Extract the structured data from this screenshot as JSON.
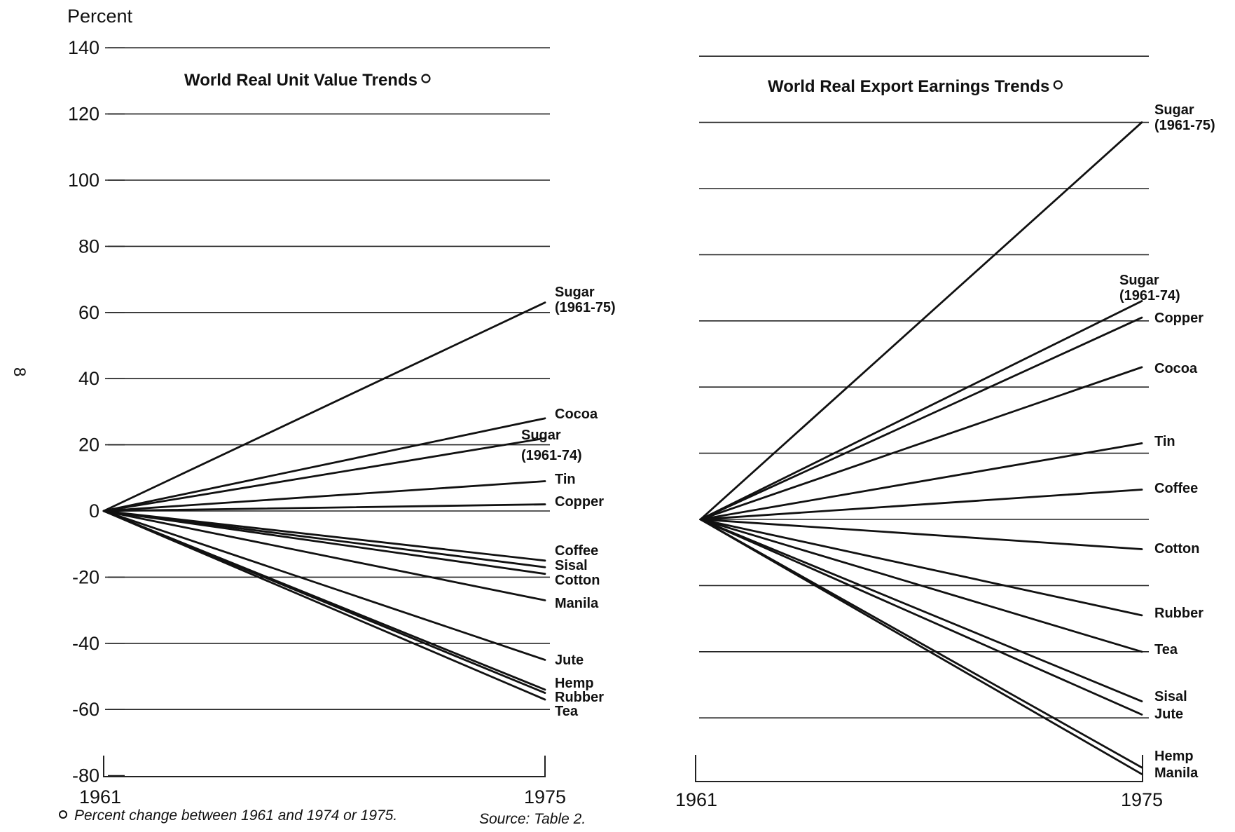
{
  "y_unit_label": "Percent",
  "page_marker": "8",
  "footnote": {
    "marker": "o",
    "text": "Percent change between 1961 and 1974 or 1975.",
    "source": "Source:  Table 2."
  },
  "chart_data": [
    {
      "type": "line",
      "title": "World Real Unit Value Trends",
      "title_marker": "o",
      "ylabel": "Percent",
      "ylim": [
        -80,
        140
      ],
      "yticks": [
        140,
        120,
        100,
        80,
        60,
        40,
        20,
        0,
        -20,
        -40,
        -60,
        -80
      ],
      "grid": true,
      "x": [
        "1961",
        "1975"
      ],
      "series": [
        {
          "name": "Sugar (1961-75)",
          "label_lines": [
            "Sugar",
            "(1961-75)"
          ],
          "values": [
            0,
            63
          ]
        },
        {
          "name": "Cocoa",
          "label_lines": [
            "Cocoa"
          ],
          "values": [
            0,
            28
          ]
        },
        {
          "name": "Sugar (1961-74)",
          "label_lines": [
            "Sugar",
            "(1961-74)"
          ],
          "values": [
            0,
            22
          ]
        },
        {
          "name": "Tin",
          "label_lines": [
            "Tin"
          ],
          "values": [
            0,
            9
          ]
        },
        {
          "name": "Copper",
          "label_lines": [
            "Copper"
          ],
          "values": [
            0,
            2
          ]
        },
        {
          "name": "Coffee",
          "label_lines": [
            "Coffee"
          ],
          "values": [
            0,
            -15
          ]
        },
        {
          "name": "Sisal",
          "label_lines": [
            "Sisal"
          ],
          "values": [
            0,
            -17
          ]
        },
        {
          "name": "Cotton",
          "label_lines": [
            "Cotton"
          ],
          "values": [
            0,
            -19
          ]
        },
        {
          "name": "Manila",
          "label_lines": [
            "Manila"
          ],
          "values": [
            0,
            -27
          ]
        },
        {
          "name": "Jute",
          "label_lines": [
            "Jute"
          ],
          "values": [
            0,
            -45
          ]
        },
        {
          "name": "Hemp",
          "label_lines": [
            "Hemp"
          ],
          "values": [
            0,
            -54
          ]
        },
        {
          "name": "Rubber",
          "label_lines": [
            "Rubber"
          ],
          "values": [
            0,
            -55
          ]
        },
        {
          "name": "Tea",
          "label_lines": [
            "Tea"
          ],
          "values": [
            0,
            -57
          ]
        }
      ]
    },
    {
      "type": "line",
      "title": "World Real Export Earnings Trends",
      "title_marker": "o",
      "ylim": [
        -80,
        140
      ],
      "grid": true,
      "x": [
        "1961",
        "1975"
      ],
      "series": [
        {
          "name": "Sugar (1961-75)",
          "label_lines": [
            "Sugar",
            "(1961-75)"
          ],
          "values": [
            0,
            120
          ]
        },
        {
          "name": "Sugar (1961-74)",
          "label_lines": [
            "Sugar",
            "(1961-74)"
          ],
          "values": [
            0,
            66
          ]
        },
        {
          "name": "Copper",
          "label_lines": [
            "Copper"
          ],
          "values": [
            0,
            61
          ]
        },
        {
          "name": "Cocoa",
          "label_lines": [
            "Cocoa"
          ],
          "values": [
            0,
            46
          ]
        },
        {
          "name": "Tin",
          "label_lines": [
            "Tin"
          ],
          "values": [
            0,
            23
          ]
        },
        {
          "name": "Coffee",
          "label_lines": [
            "Coffee"
          ],
          "values": [
            0,
            9
          ]
        },
        {
          "name": "Cotton",
          "label_lines": [
            "Cotton"
          ],
          "values": [
            0,
            -9
          ]
        },
        {
          "name": "Rubber",
          "label_lines": [
            "Rubber"
          ],
          "values": [
            0,
            -29
          ]
        },
        {
          "name": "Tea",
          "label_lines": [
            "Tea"
          ],
          "values": [
            0,
            -40
          ]
        },
        {
          "name": "Sisal",
          "label_lines": [
            "Sisal"
          ],
          "values": [
            0,
            -55
          ]
        },
        {
          "name": "Jute",
          "label_lines": [
            "Jute"
          ],
          "values": [
            0,
            -59
          ]
        },
        {
          "name": "Hemp",
          "label_lines": [
            "Hemp"
          ],
          "values": [
            0,
            -75
          ]
        },
        {
          "name": "Manila",
          "label_lines": [
            "Manila"
          ],
          "values": [
            0,
            -77
          ]
        }
      ]
    }
  ]
}
